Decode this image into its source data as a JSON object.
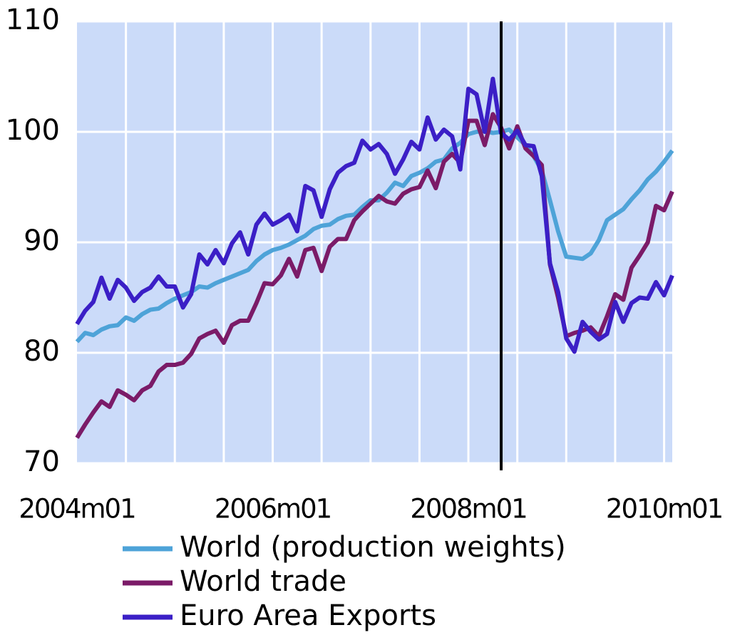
{
  "chart_data": {
    "type": "line",
    "categories": [
      "2004m01",
      null,
      null,
      null,
      null,
      null,
      null,
      null,
      null,
      null,
      null,
      null,
      null,
      null,
      null,
      null,
      null,
      null,
      null,
      null,
      null,
      null,
      null,
      null,
      "2006m01",
      null,
      null,
      null,
      null,
      null,
      null,
      null,
      null,
      null,
      null,
      null,
      null,
      null,
      null,
      null,
      null,
      null,
      null,
      null,
      null,
      null,
      null,
      null,
      "2008m01",
      null,
      null,
      null,
      null,
      null,
      null,
      null,
      null,
      null,
      null,
      null,
      null,
      null,
      null,
      null,
      null,
      null,
      null,
      null,
      null,
      null,
      null,
      null,
      "2010m01",
      null
    ],
    "series": [
      {
        "name": "World (production weights)",
        "color": "#4ea3d8",
        "values": [
          81.0,
          81.8,
          81.6,
          82.1,
          82.4,
          82.5,
          83.2,
          82.9,
          83.5,
          83.9,
          84.0,
          84.5,
          84.9,
          85.2,
          85.5,
          86.0,
          85.9,
          86.3,
          86.6,
          86.9,
          87.2,
          87.5,
          88.3,
          88.9,
          89.3,
          89.5,
          89.8,
          90.2,
          90.6,
          91.2,
          91.5,
          91.6,
          92.1,
          92.4,
          92.5,
          93.2,
          93.8,
          93.8,
          94.5,
          95.4,
          95.1,
          96.0,
          96.3,
          96.7,
          97.3,
          97.5,
          98.5,
          99.0,
          99.8,
          100.0,
          100.1,
          99.9,
          100.0,
          100.2,
          99.5,
          98.8,
          97.8,
          96.5,
          93.8,
          91.0,
          88.7,
          88.6,
          88.5,
          89.0,
          90.2,
          92.0,
          92.5,
          93.0,
          93.9,
          94.7,
          95.7,
          96.4,
          97.3,
          98.3
        ]
      },
      {
        "name": "World trade",
        "color": "#7b1b68",
        "values": [
          72.3,
          73.5,
          74.6,
          75.6,
          75.1,
          76.6,
          76.2,
          75.7,
          76.6,
          77.0,
          78.3,
          78.9,
          78.9,
          79.1,
          79.9,
          81.3,
          81.7,
          82.0,
          80.9,
          82.5,
          82.9,
          82.9,
          84.5,
          86.3,
          86.2,
          87.0,
          88.5,
          86.9,
          89.3,
          89.5,
          87.4,
          89.6,
          90.3,
          90.3,
          92.0,
          92.8,
          93.5,
          94.2,
          93.7,
          93.5,
          94.4,
          94.8,
          95.0,
          96.5,
          94.9,
          97.3,
          98.0,
          97.2,
          101.0,
          101.0,
          98.8,
          101.6,
          100.4,
          98.5,
          100.5,
          98.5,
          97.8,
          97.0,
          88.0,
          85.0,
          81.5,
          81.8,
          82.0,
          82.3,
          81.5,
          83.3,
          85.3,
          84.8,
          87.7,
          88.8,
          90.0,
          93.3,
          92.9,
          94.6
        ]
      },
      {
        "name": "Euro Area Exports",
        "color": "#3b1fc6",
        "values": [
          82.6,
          83.8,
          84.6,
          86.8,
          84.9,
          86.6,
          85.9,
          84.7,
          85.5,
          85.9,
          86.9,
          86.0,
          86.0,
          84.1,
          85.3,
          88.9,
          88.0,
          89.3,
          88.1,
          89.9,
          90.9,
          88.9,
          91.6,
          92.6,
          91.6,
          92.0,
          92.5,
          91.0,
          95.1,
          94.7,
          92.3,
          94.8,
          96.3,
          96.9,
          97.2,
          99.2,
          98.4,
          98.9,
          98.0,
          96.2,
          97.5,
          99.1,
          98.4,
          101.3,
          99.3,
          100.2,
          99.6,
          96.6,
          103.9,
          103.4,
          100.0,
          104.8,
          99.9,
          99.3,
          100.1,
          98.8,
          98.7,
          96.0,
          88.1,
          85.5,
          81.3,
          80.1,
          82.8,
          81.9,
          81.2,
          81.7,
          84.6,
          82.8,
          84.5,
          85.0,
          84.9,
          86.4,
          85.2,
          87.0
        ]
      }
    ],
    "ylim": [
      70,
      110
    ],
    "yticks": [
      70,
      80,
      90,
      100,
      110
    ],
    "grid": true,
    "legend": "bottom"
  }
}
